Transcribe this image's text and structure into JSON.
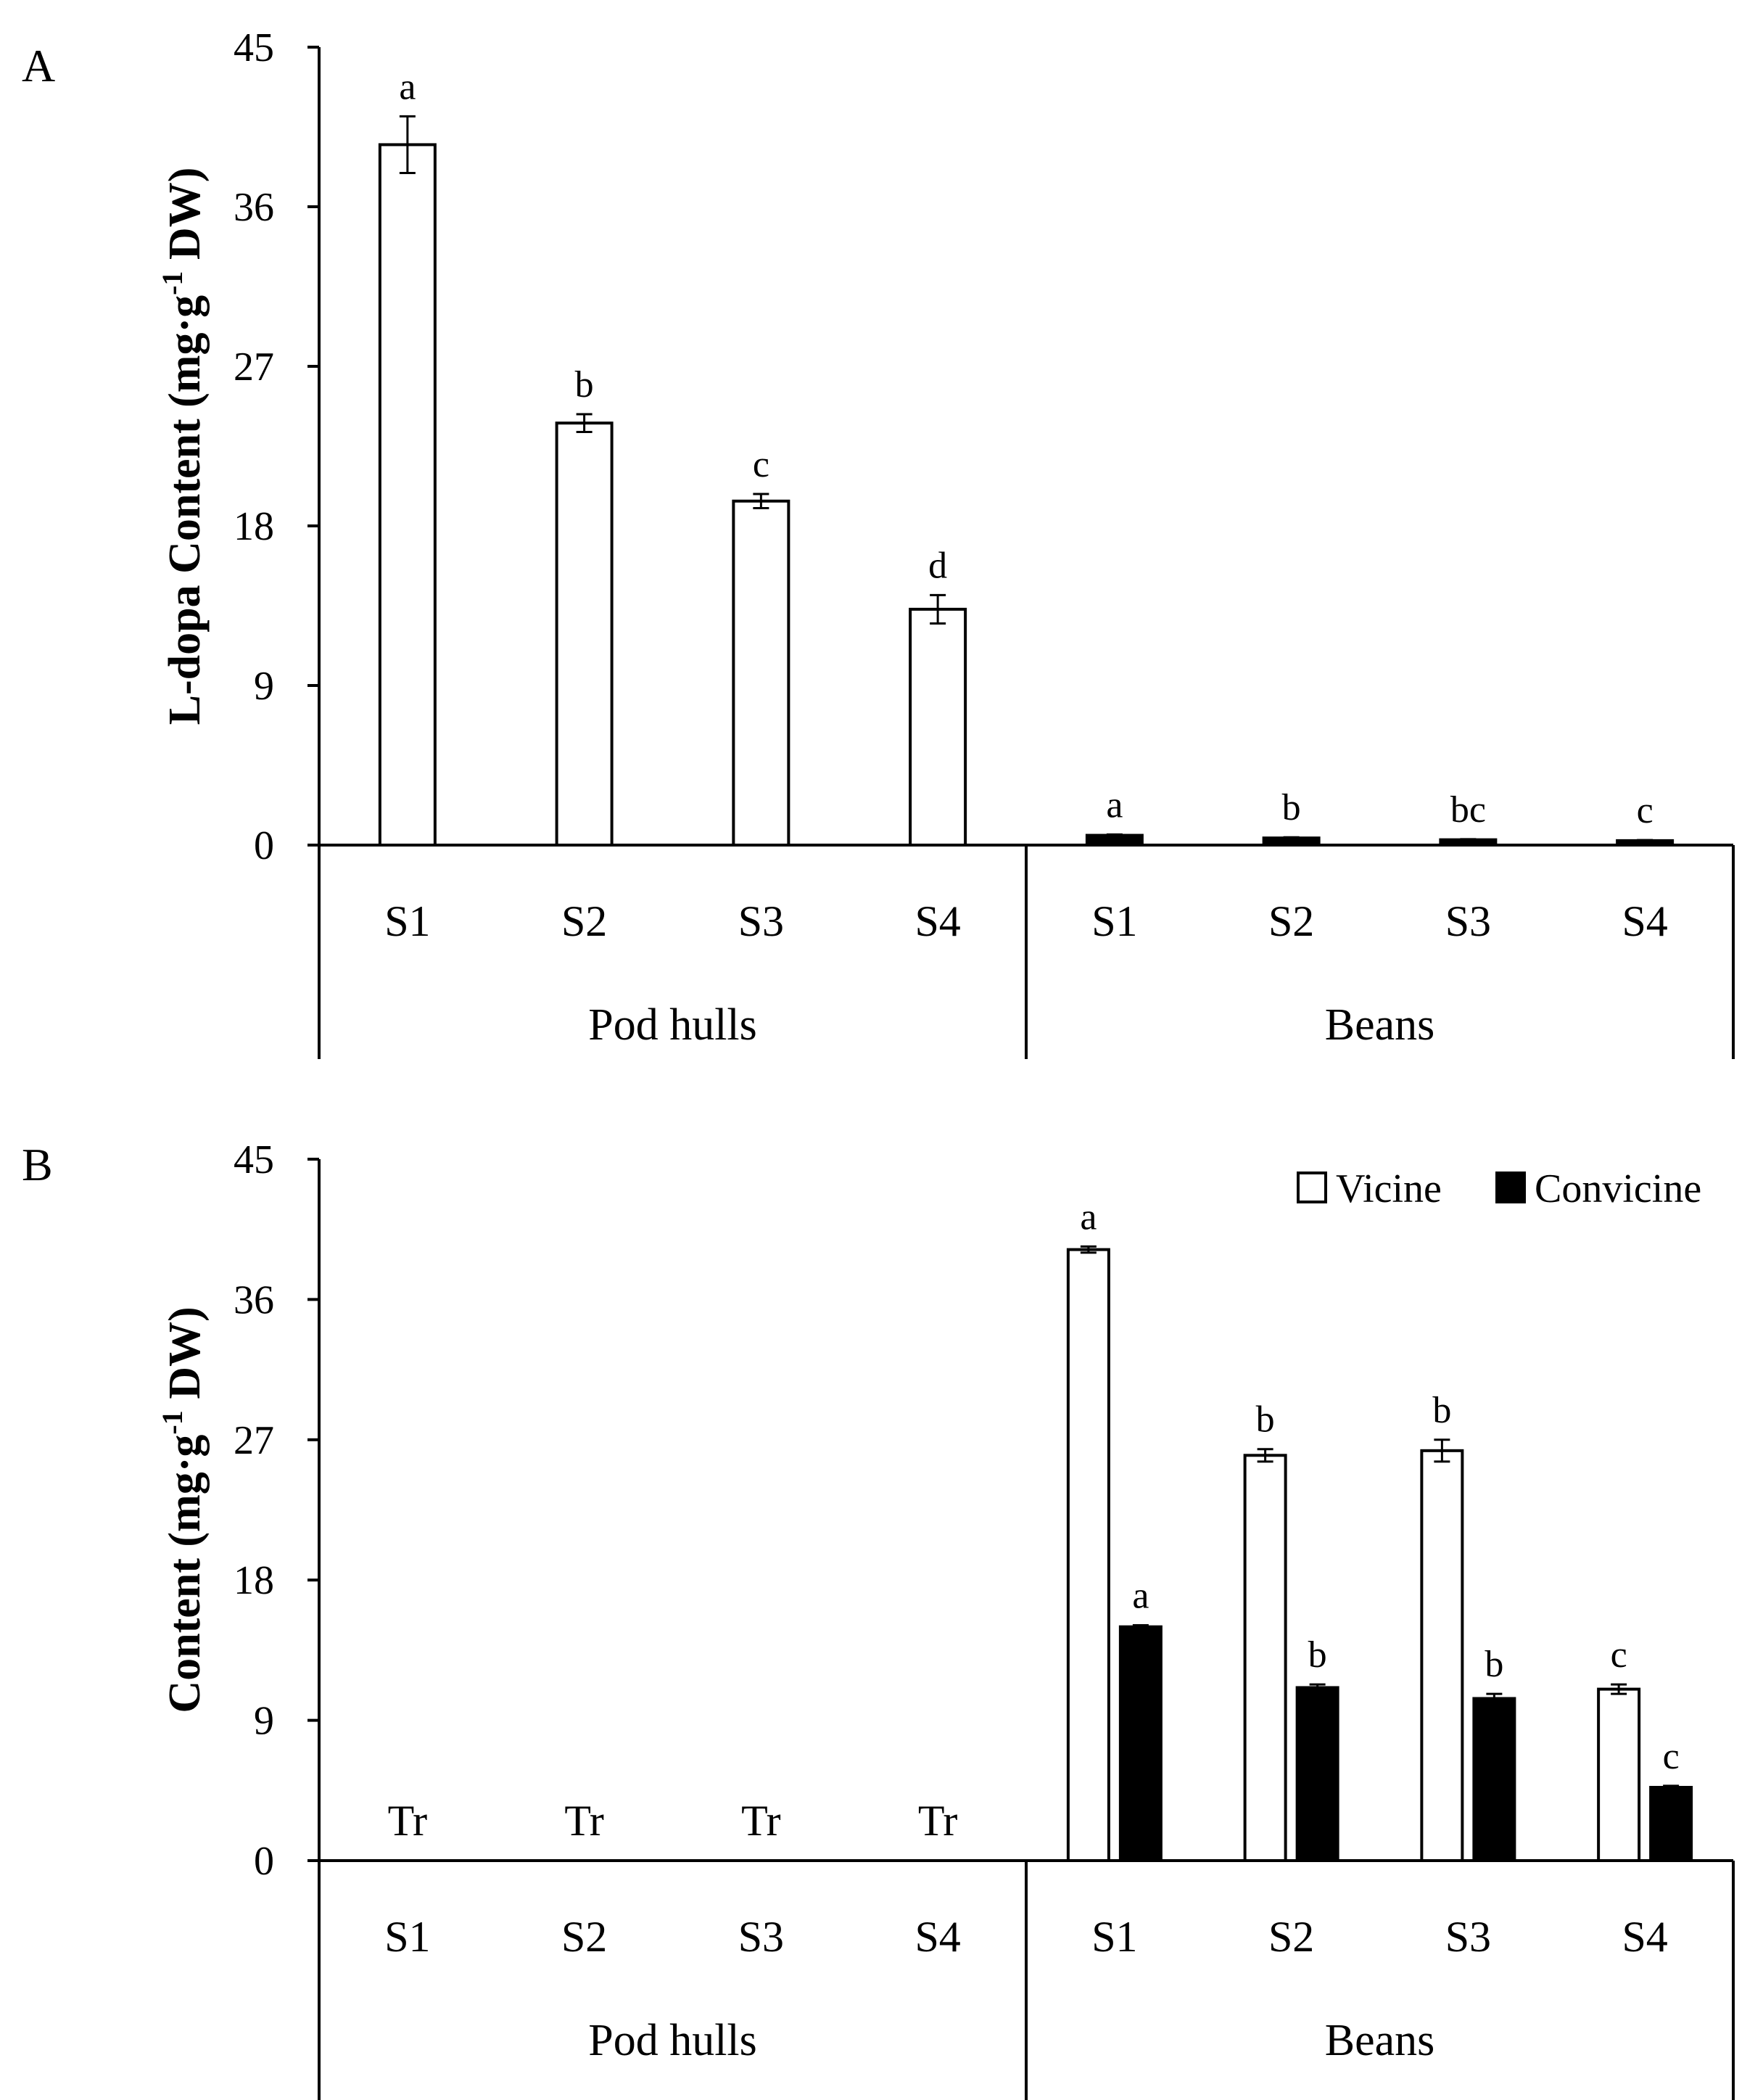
{
  "chart_data": [
    {
      "id": "A",
      "type": "bar",
      "panel_label": "A",
      "ylabel_pre": "L-dopa Content (mg·g",
      "ylabel_sup": "-1",
      "ylabel_post": " DW)",
      "ylim": [
        0,
        45
      ],
      "yticks": [
        "0",
        "9",
        "18",
        "27",
        "36",
        "45"
      ],
      "groups": [
        {
          "name": "Pod hulls",
          "categories": [
            "S1",
            "S2",
            "S3",
            "S4"
          ],
          "bars": [
            {
              "value": 39.5,
              "error": 1.6,
              "letter": "a",
              "color": "#ffffff"
            },
            {
              "value": 23.8,
              "error": 0.5,
              "letter": "b",
              "color": "#ffffff"
            },
            {
              "value": 19.4,
              "error": 0.4,
              "letter": "c",
              "color": "#ffffff"
            },
            {
              "value": 13.3,
              "error": 0.8,
              "letter": "d",
              "color": "#ffffff"
            }
          ]
        },
        {
          "name": "Beans",
          "categories": [
            "S1",
            "S2",
            "S3",
            "S4"
          ],
          "bars": [
            {
              "value": 0.55,
              "error": 0.05,
              "letter": "a",
              "color": "#000000"
            },
            {
              "value": 0.4,
              "error": 0.04,
              "letter": "b",
              "color": "#000000"
            },
            {
              "value": 0.3,
              "error": 0.03,
              "letter": "bc",
              "color": "#000000"
            },
            {
              "value": 0.25,
              "error": 0.03,
              "letter": "c",
              "color": "#000000"
            }
          ]
        }
      ]
    },
    {
      "id": "B",
      "type": "bar",
      "panel_label": "B",
      "ylabel_pre": "Content (mg·g",
      "ylabel_sup": "-1",
      "ylabel_post": " DW)",
      "ylim": [
        0,
        45
      ],
      "yticks": [
        "0",
        "9",
        "18",
        "27",
        "36",
        "45"
      ],
      "series": [
        {
          "name": "Vicine",
          "color": "#ffffff"
        },
        {
          "name": "Convicine",
          "color": "#000000"
        }
      ],
      "legend_position": "top-right",
      "groups": [
        {
          "name": "Pod hulls",
          "categories": [
            "S1",
            "S2",
            "S3",
            "S4"
          ],
          "trace_labels": [
            "Tr",
            "Tr",
            "Tr",
            "Tr"
          ]
        },
        {
          "name": "Beans",
          "categories": [
            "S1",
            "S2",
            "S3",
            "S4"
          ],
          "vicine": [
            {
              "value": 39.2,
              "error": 0.2,
              "letter": "a"
            },
            {
              "value": 26.0,
              "error": 0.4,
              "letter": "b"
            },
            {
              "value": 26.3,
              "error": 0.7,
              "letter": "b"
            },
            {
              "value": 11.0,
              "error": 0.3,
              "letter": "c"
            }
          ],
          "convicine": [
            {
              "value": 15.0,
              "error": 0.1,
              "letter": "a"
            },
            {
              "value": 11.1,
              "error": 0.2,
              "letter": "b"
            },
            {
              "value": 10.4,
              "error": 0.3,
              "letter": "b"
            },
            {
              "value": 4.7,
              "error": 0.1,
              "letter": "c"
            }
          ]
        }
      ]
    }
  ]
}
